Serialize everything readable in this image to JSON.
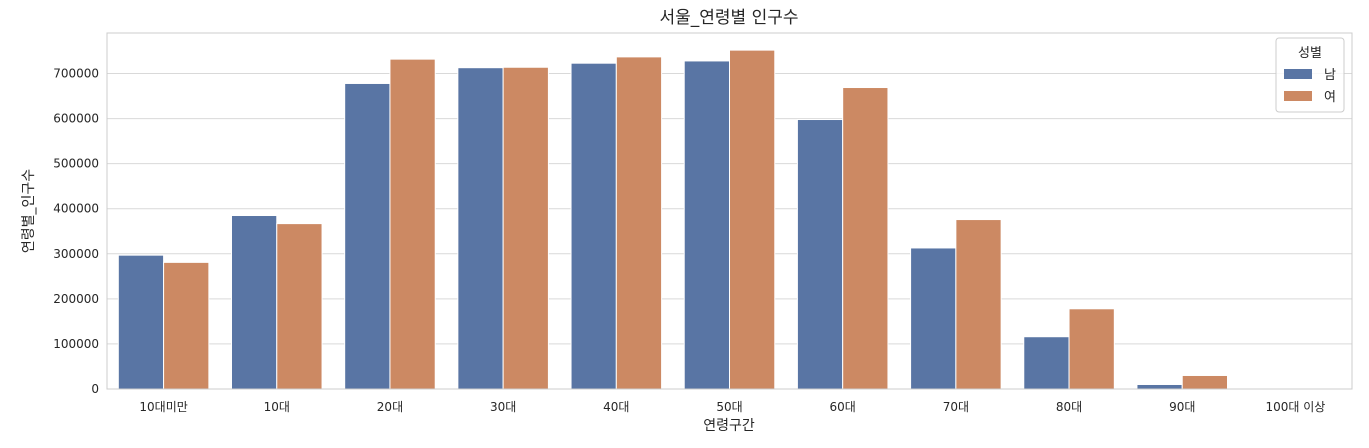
{
  "chart_data": {
    "type": "bar",
    "title": "서울_연령별 인구수",
    "xlabel": "연령구간",
    "ylabel": "연령별_인구수",
    "categories": [
      "10대미만",
      "10대",
      "20대",
      "30대",
      "40대",
      "50대",
      "60대",
      "70대",
      "80대",
      "90대",
      "100대 이상"
    ],
    "series": [
      {
        "name": "남",
        "color": "#5975a4",
        "values": [
          297000,
          385000,
          678000,
          713000,
          723000,
          728000,
          598000,
          313000,
          116000,
          10000,
          300
        ]
      },
      {
        "name": "여",
        "color": "#cc8963",
        "values": [
          281000,
          367000,
          732000,
          714000,
          737000,
          752000,
          669000,
          376000,
          178000,
          30000,
          1000
        ]
      }
    ],
    "ylim": [
      0,
      790000
    ],
    "yticks": [
      0,
      100000,
      200000,
      300000,
      400000,
      500000,
      600000,
      700000
    ],
    "grid": true,
    "legend": {
      "title": "성별",
      "placement": "top-right"
    }
  }
}
